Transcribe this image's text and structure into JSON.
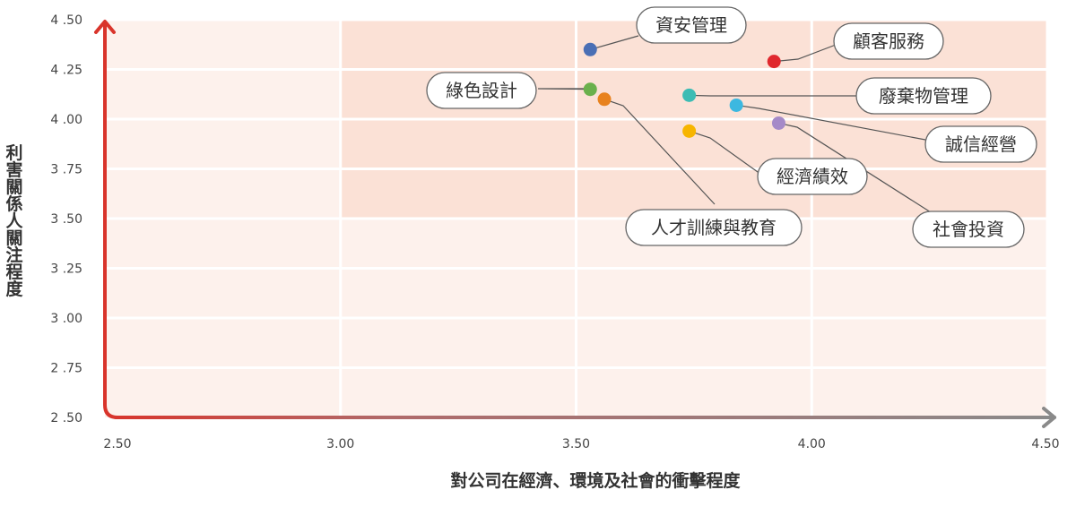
{
  "chart_data": {
    "type": "scatter",
    "xlabel": "對公司在經濟、環境及社會的衝擊程度",
    "ylabel": "利害關係人關注程度",
    "xlim": [
      2.5,
      4.5
    ],
    "ylim": [
      2.5,
      4.5
    ],
    "x_ticks": [
      "2.50",
      "3.00",
      "3.50",
      "4.00",
      "4.50"
    ],
    "y_ticks": [
      "2.50",
      "2.75",
      "3.00",
      "3.25",
      "3.50",
      "3.75",
      "4.00",
      "4.25",
      "4.50"
    ],
    "grid": true,
    "highlight_region": {
      "x_from": 3.0,
      "y_from": 3.5
    },
    "points": [
      {
        "label": "資安管理",
        "x": 3.53,
        "y": 4.35,
        "color": "#4a6fb5"
      },
      {
        "label": "顧客服務",
        "x": 3.92,
        "y": 4.29,
        "color": "#e0282e"
      },
      {
        "label": "綠色設計",
        "x": 3.53,
        "y": 4.15,
        "color": "#6ab04c"
      },
      {
        "label": "人才訓練與教育",
        "x": 3.56,
        "y": 4.1,
        "color": "#e8821e"
      },
      {
        "label": "廢棄物管理",
        "x": 3.74,
        "y": 4.12,
        "color": "#3cbcb4"
      },
      {
        "label": "誠信經營",
        "x": 3.84,
        "y": 4.07,
        "color": "#3cb8e0"
      },
      {
        "label": "社會投資",
        "x": 3.93,
        "y": 3.98,
        "color": "#a58ac8"
      },
      {
        "label": "經濟績效",
        "x": 3.74,
        "y": 3.94,
        "color": "#f7b500"
      }
    ]
  },
  "colors": {
    "y_axis": "#d9342b",
    "x_axis": "#8a8a8a",
    "plot_bg": "#fdf1ec",
    "highlight_bg": "#fbe1d6"
  }
}
